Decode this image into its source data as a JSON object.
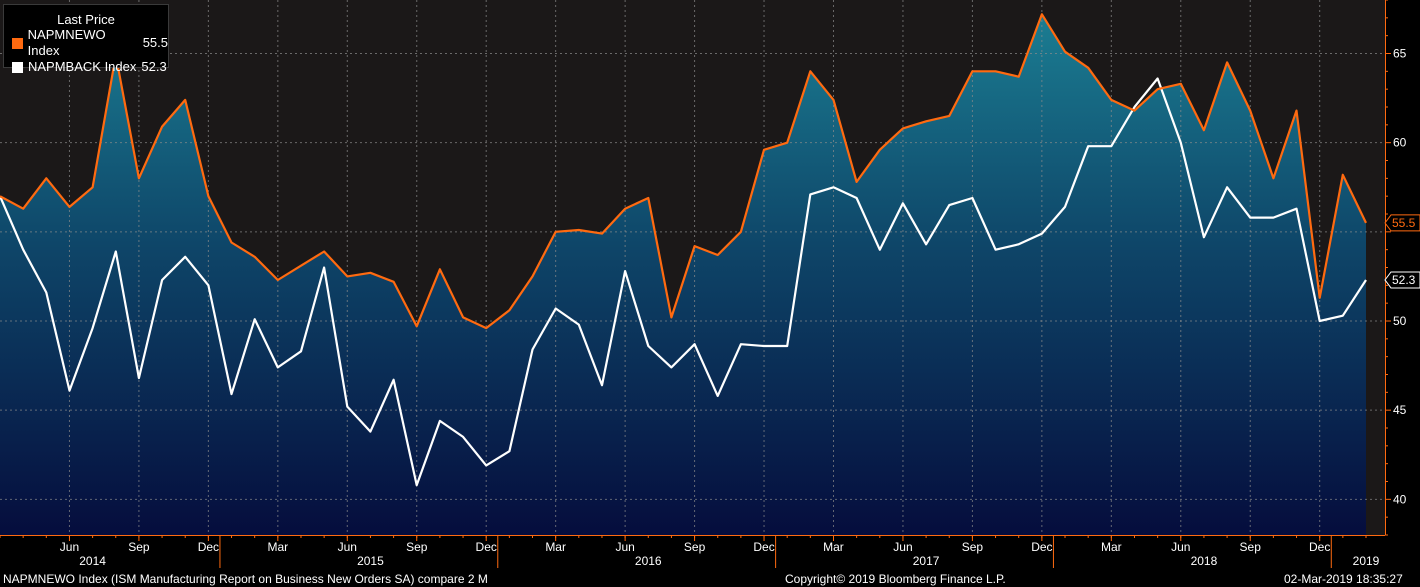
{
  "legend": {
    "title": "Last Price",
    "entries": [
      {
        "name": "NAPMNEWO Index",
        "value": "55.5",
        "color": "#ff6a10"
      },
      {
        "name": "NAPMBACK Index",
        "value": "52.3",
        "color": "#ffffff"
      }
    ]
  },
  "footer": {
    "left": "NAPMNEWO Index (ISM Manufacturing Report on Business New Orders SA) compare 2  M",
    "center": "Copyright© 2019 Bloomberg Finance L.P.",
    "right": "02-Mar-2019 18:35:27"
  },
  "chart_data": {
    "type": "line",
    "x_start": "2014-03",
    "x_end": "2019-02",
    "x_tick_labels": [
      {
        "label": "Jun",
        "month": "2014-06"
      },
      {
        "label": "Sep",
        "month": "2014-09"
      },
      {
        "label": "Dec",
        "month": "2014-12"
      },
      {
        "label": "Mar",
        "month": "2015-03"
      },
      {
        "label": "Jun",
        "month": "2015-06"
      },
      {
        "label": "Sep",
        "month": "2015-09"
      },
      {
        "label": "Dec",
        "month": "2015-12"
      },
      {
        "label": "Mar",
        "month": "2016-03"
      },
      {
        "label": "Jun",
        "month": "2016-06"
      },
      {
        "label": "Sep",
        "month": "2016-09"
      },
      {
        "label": "Dec",
        "month": "2016-12"
      },
      {
        "label": "Mar",
        "month": "2017-03"
      },
      {
        "label": "Jun",
        "month": "2017-06"
      },
      {
        "label": "Sep",
        "month": "2017-09"
      },
      {
        "label": "Dec",
        "month": "2017-12"
      },
      {
        "label": "Mar",
        "month": "2018-03"
      },
      {
        "label": "Jun",
        "month": "2018-06"
      },
      {
        "label": "Sep",
        "month": "2018-09"
      },
      {
        "label": "Dec",
        "month": "2018-12"
      }
    ],
    "year_labels": [
      {
        "label": "2014",
        "month": "2014-07"
      },
      {
        "label": "2015",
        "month": "2015-07"
      },
      {
        "label": "2016",
        "month": "2016-07"
      },
      {
        "label": "2017",
        "month": "2017-07"
      },
      {
        "label": "2018",
        "month": "2018-07"
      },
      {
        "label": "2019",
        "month": "2019-02"
      }
    ],
    "y_ticks": [
      40,
      45,
      50,
      55,
      60,
      65
    ],
    "y_tick_labels": [
      "40",
      "45",
      "50",
      "",
      "60",
      "65"
    ],
    "ylim": [
      38,
      68
    ],
    "axis_side": "right",
    "grid": true,
    "legend_position": "top-left",
    "series": [
      {
        "name": "NAPMNEWO Index",
        "color": "#ff6a10",
        "fill": true,
        "last_label": "55.5",
        "values": [
          57.0,
          56.3,
          58.0,
          56.4,
          57.5,
          64.9,
          58.0,
          60.9,
          62.4,
          57.0,
          54.4,
          53.6,
          52.3,
          53.1,
          53.9,
          52.5,
          52.7,
          52.2,
          49.7,
          52.9,
          50.2,
          49.6,
          50.6,
          52.5,
          55.0,
          55.1,
          54.9,
          56.3,
          56.9,
          50.2,
          54.2,
          53.7,
          55.0,
          59.6,
          60.0,
          64.0,
          62.4,
          57.8,
          59.6,
          60.8,
          61.2,
          61.5,
          64.0,
          64.0,
          63.7,
          67.2,
          65.1,
          64.2,
          62.4,
          61.8,
          63.0,
          63.3,
          60.7,
          64.5,
          61.8,
          58.0,
          61.8,
          51.3,
          58.2,
          55.5
        ]
      },
      {
        "name": "NAPMBACK Index",
        "color": "#ffffff",
        "fill": false,
        "last_label": "52.3",
        "values": [
          57.0,
          54.0,
          51.6,
          46.1,
          49.6,
          53.9,
          46.8,
          52.3,
          53.6,
          52.0,
          45.9,
          50.1,
          47.4,
          48.3,
          53.0,
          45.2,
          43.8,
          46.7,
          40.8,
          44.4,
          43.5,
          41.9,
          42.7,
          48.4,
          50.7,
          49.8,
          46.4,
          52.8,
          48.6,
          47.4,
          48.7,
          45.8,
          48.7,
          48.6,
          48.6,
          57.1,
          57.5,
          56.9,
          54.0,
          56.6,
          54.3,
          56.5,
          56.9,
          54.0,
          54.3,
          54.9,
          56.4,
          59.8,
          59.8,
          62.0,
          63.6,
          60.0,
          54.7,
          57.5,
          55.8,
          55.8,
          56.3,
          50.0,
          50.3,
          52.3
        ]
      }
    ]
  }
}
